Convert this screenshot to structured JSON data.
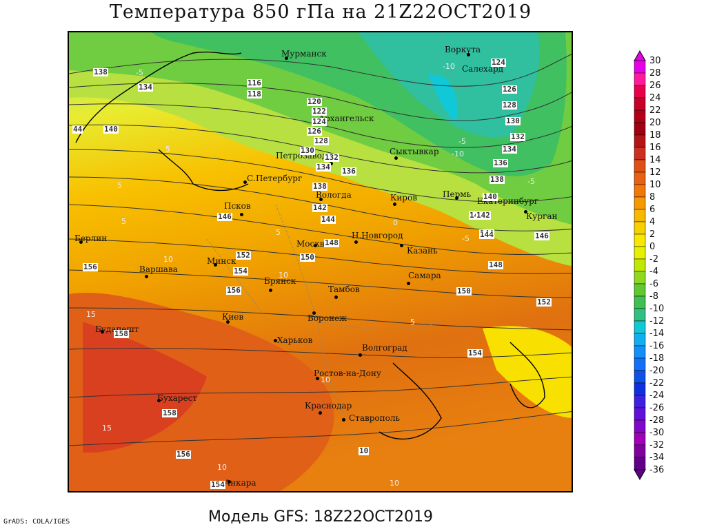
{
  "title": "Температура 850 гПа на 21Z22OCT2019",
  "subtitle": "Модель GFS: 18Z22OCT2019",
  "credit": "GrADS: COLA/IGES",
  "colorbar": {
    "labels": [
      "30",
      "28",
      "26",
      "24",
      "22",
      "20",
      "18",
      "16",
      "14",
      "12",
      "10",
      "8",
      "6",
      "4",
      "2",
      "0",
      "-2",
      "-4",
      "-6",
      "-8",
      "-10",
      "-12",
      "-14",
      "-16",
      "-18",
      "-20",
      "-22",
      "-24",
      "-26",
      "-28",
      "-30",
      "-32",
      "-34",
      "-36"
    ],
    "colors": [
      "#e800e8",
      "#ff1a9c",
      "#e8004a",
      "#c8002a",
      "#b00018",
      "#a00010",
      "#b41414",
      "#cc3020",
      "#e05014",
      "#e86010",
      "#f07808",
      "#f89800",
      "#f8b800",
      "#f8d000",
      "#f8e800",
      "#e8f000",
      "#c0e800",
      "#90d820",
      "#60c830",
      "#40c050",
      "#30c080",
      "#10c8d8",
      "#10b0f0",
      "#1090f8",
      "#1070f8",
      "#1050e8",
      "#1030e0",
      "#4020e0",
      "#6010d8",
      "#8008c8",
      "#a000b8",
      "#8000a0",
      "#600088"
    ]
  },
  "cities": [
    {
      "name": "Мурманск"
    },
    {
      "name": "Воркута"
    },
    {
      "name": "Салехард"
    },
    {
      "name": "Архангельск"
    },
    {
      "name": "Сыктывкар"
    },
    {
      "name": "Петрозаводск"
    },
    {
      "name": "С.Петербург"
    },
    {
      "name": "Вологда"
    },
    {
      "name": "Киров"
    },
    {
      "name": "Пермь"
    },
    {
      "name": "Екатеринбург"
    },
    {
      "name": "Курган"
    },
    {
      "name": "Псков"
    },
    {
      "name": "Москва"
    },
    {
      "name": "Н.Новгород"
    },
    {
      "name": "Казань"
    },
    {
      "name": "Берлин"
    },
    {
      "name": "Варшава"
    },
    {
      "name": "Минск"
    },
    {
      "name": "Брянск"
    },
    {
      "name": "Тамбов"
    },
    {
      "name": "Самара"
    },
    {
      "name": "Киев"
    },
    {
      "name": "Воронеж"
    },
    {
      "name": "Будапешт"
    },
    {
      "name": "Харьков"
    },
    {
      "name": "Волгоград"
    },
    {
      "name": "Ростов-на-Дону"
    },
    {
      "name": "Бухарест"
    },
    {
      "name": "Краснодар"
    },
    {
      "name": "Ставрополь"
    },
    {
      "name": "Анкара"
    }
  ],
  "height_labels": [
    "138",
    "134",
    "116",
    "118",
    "120",
    "122",
    "124",
    "126",
    "128",
    "130",
    "132",
    "134",
    "136",
    "138",
    "140",
    "142",
    "144",
    "146",
    "148",
    "150",
    "152",
    "154",
    "156",
    "158",
    "140",
    "144",
    "44",
    "124",
    "126",
    "128",
    "130",
    "132",
    "134",
    "136",
    "138",
    "140",
    "142",
    "144",
    "146",
    "148",
    "150",
    "152",
    "154",
    "156",
    "158",
    "154",
    "156",
    "10"
  ],
  "temp_labels": [
    "-5",
    "-10",
    "5",
    "-5",
    "-10",
    "-5",
    "-5",
    "0",
    "5",
    "5",
    "5",
    "10",
    "10",
    "15",
    "10",
    "5",
    "15",
    "10",
    "10"
  ]
}
